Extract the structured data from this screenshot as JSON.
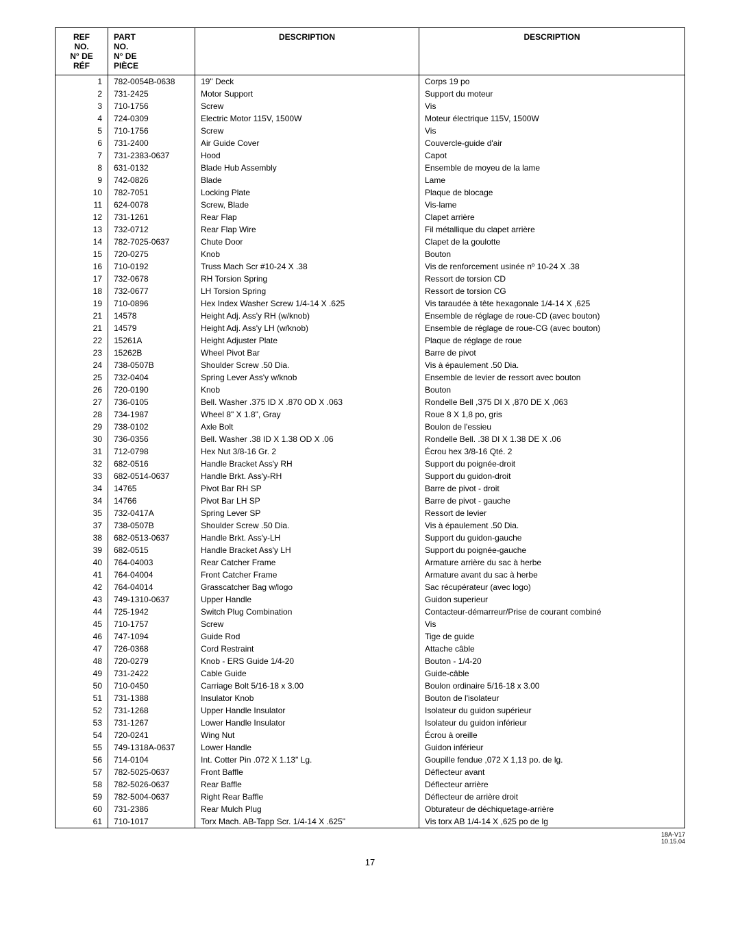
{
  "header": {
    "col1_line1": "REF",
    "col1_line2": "NO.",
    "col1_line3": "N° DE",
    "col1_line4": "RÉF",
    "col2_line1": "PART",
    "col2_line2": "NO.",
    "col2_line3": "N° DE",
    "col2_line4": "PIÈCE",
    "col3": "DESCRIPTION",
    "col4": "DESCRIPTION"
  },
  "rows": [
    {
      "ref": "1",
      "part": "782-0054B-0638",
      "desc_en": "19\" Deck",
      "desc_fr": "Corps 19 po"
    },
    {
      "ref": "2",
      "part": "731-2425",
      "desc_en": "Motor Support",
      "desc_fr": "Support du moteur"
    },
    {
      "ref": "3",
      "part": "710-1756",
      "desc_en": "Screw",
      "desc_fr": "Vis"
    },
    {
      "ref": "4",
      "part": "724-0309",
      "desc_en": "Electric Motor 115V, 1500W",
      "desc_fr": "Moteur électrique 115V, 1500W"
    },
    {
      "ref": "5",
      "part": "710-1756",
      "desc_en": "Screw",
      "desc_fr": "Vis"
    },
    {
      "ref": "6",
      "part": "731-2400",
      "desc_en": "Air Guide Cover",
      "desc_fr": "Couvercle-guide d'air"
    },
    {
      "ref": "7",
      "part": "731-2383-0637",
      "desc_en": "Hood",
      "desc_fr": "Capot"
    },
    {
      "ref": "8",
      "part": "631-0132",
      "desc_en": "Blade Hub Assembly",
      "desc_fr": "Ensemble de moyeu de la lame"
    },
    {
      "ref": "9",
      "part": "742-0826",
      "desc_en": "Blade",
      "desc_fr": "Lame"
    },
    {
      "ref": "10",
      "part": "782-7051",
      "desc_en": "Locking Plate",
      "desc_fr": "Plaque de blocage"
    },
    {
      "ref": "11",
      "part": "624-0078",
      "desc_en": "Screw, Blade",
      "desc_fr": "Vis-lame"
    },
    {
      "ref": "12",
      "part": "731-1261",
      "desc_en": "Rear Flap",
      "desc_fr": "Clapet arrière"
    },
    {
      "ref": "13",
      "part": "732-0712",
      "desc_en": "Rear Flap Wire",
      "desc_fr": "Fil métallique du clapet arrière"
    },
    {
      "ref": "14",
      "part": "782-7025-0637",
      "desc_en": "Chute Door",
      "desc_fr": "Clapet de la goulotte"
    },
    {
      "ref": "15",
      "part": "720-0275",
      "desc_en": "Knob",
      "desc_fr": "Bouton"
    },
    {
      "ref": "16",
      "part": "710-0192",
      "desc_en": "Truss Mach Scr #10-24 X .38",
      "desc_fr": "Vis de renforcement usinée nº 10-24 X .38"
    },
    {
      "ref": "17",
      "part": "732-0678",
      "desc_en": "RH Torsion Spring",
      "desc_fr": "Ressort de torsion CD"
    },
    {
      "ref": "18",
      "part": "732-0677",
      "desc_en": "LH Torsion Spring",
      "desc_fr": "Ressort de torsion CG"
    },
    {
      "ref": "19",
      "part": "710-0896",
      "desc_en": "Hex Index Washer Screw 1/4-14 X .625",
      "desc_fr": "Vis taraudée à tête hexagonale 1/4-14 X ,625"
    },
    {
      "ref": "21",
      "part": "14578",
      "desc_en": "Height Adj. Ass'y RH (w/knob)",
      "desc_fr": "Ensemble de réglage de roue-CD (avec bouton)"
    },
    {
      "ref": "21",
      "part": "14579",
      "desc_en": "Height Adj. Ass'y LH (w/knob)",
      "desc_fr": "Ensemble de réglage de roue-CG (avec bouton)"
    },
    {
      "ref": "22",
      "part": "15261A",
      "desc_en": "Height Adjuster Plate",
      "desc_fr": "Plaque de réglage de roue"
    },
    {
      "ref": "23",
      "part": "15262B",
      "desc_en": "Wheel Pivot Bar",
      "desc_fr": "Barre de pivot"
    },
    {
      "ref": "24",
      "part": "738-0507B",
      "desc_en": "Shoulder Screw .50 Dia.",
      "desc_fr": "Vis à épaulement .50 Dia."
    },
    {
      "ref": "25",
      "part": "732-0404",
      "desc_en": "Spring Lever Ass'y w/knob",
      "desc_fr": "Ensemble de levier de ressort avec bouton"
    },
    {
      "ref": "26",
      "part": "720-0190",
      "desc_en": "Knob",
      "desc_fr": "Bouton"
    },
    {
      "ref": "27",
      "part": "736-0105",
      "desc_en": "Bell. Washer .375 ID X .870 OD X .063",
      "desc_fr": "Rondelle Bell ,375 DI X ,870 DE X ,063"
    },
    {
      "ref": "28",
      "part": "734-1987",
      "desc_en": "Wheel 8\" X 1.8\", Gray",
      "desc_fr": "Roue 8 X 1,8 po, gris"
    },
    {
      "ref": "29",
      "part": "738-0102",
      "desc_en": "Axle Bolt",
      "desc_fr": "Boulon de l'essieu"
    },
    {
      "ref": "30",
      "part": "736-0356",
      "desc_en": "Bell. Washer .38 ID X 1.38 OD X .06",
      "desc_fr": "Rondelle Bell. .38 DI X 1.38 DE X .06"
    },
    {
      "ref": "31",
      "part": "712-0798",
      "desc_en": "Hex Nut 3/8-16 Gr. 2",
      "desc_fr": "Écrou hex 3/8-16 Qté. 2"
    },
    {
      "ref": "32",
      "part": "682-0516",
      "desc_en": "Handle Bracket Ass'y RH",
      "desc_fr": "Support du poignée-droit"
    },
    {
      "ref": "33",
      "part": "682-0514-0637",
      "desc_en": "Handle Brkt. Ass'y-RH",
      "desc_fr": "Support du guidon-droit"
    },
    {
      "ref": "34",
      "part": "14765",
      "desc_en": "Pivot Bar RH SP",
      "desc_fr": "Barre de pivot - droit"
    },
    {
      "ref": "34",
      "part": "14766",
      "desc_en": "Pivot Bar LH SP",
      "desc_fr": "Barre de pivot - gauche"
    },
    {
      "ref": "35",
      "part": "732-0417A",
      "desc_en": "Spring Lever SP",
      "desc_fr": "Ressort de levier"
    },
    {
      "ref": "37",
      "part": "738-0507B",
      "desc_en": "Shoulder Screw .50 Dia.",
      "desc_fr": "Vis à épaulement .50 Dia."
    },
    {
      "ref": "38",
      "part": "682-0513-0637",
      "desc_en": "Handle Brkt. Ass'y-LH",
      "desc_fr": "Support du guidon-gauche"
    },
    {
      "ref": "39",
      "part": "682-0515",
      "desc_en": "Handle Bracket Ass'y LH",
      "desc_fr": "Support du poignée-gauche"
    },
    {
      "ref": "40",
      "part": "764-04003",
      "desc_en": "Rear Catcher Frame",
      "desc_fr": "Armature arrière du sac à herbe"
    },
    {
      "ref": "41",
      "part": "764-04004",
      "desc_en": "Front Catcher Frame",
      "desc_fr": "Armature avant du sac à herbe"
    },
    {
      "ref": "42",
      "part": "764-04014",
      "desc_en": "Grasscatcher Bag w/logo",
      "desc_fr": "Sac récupérateur (avec logo)"
    },
    {
      "ref": "43",
      "part": "749-1310-0637",
      "desc_en": "Upper Handle",
      "desc_fr": "Guidon superieur"
    },
    {
      "ref": "44",
      "part": "725-1942",
      "desc_en": "Switch Plug Combination",
      "desc_fr": "Contacteur-démarreur/Prise de courant combiné"
    },
    {
      "ref": "45",
      "part": "710-1757",
      "desc_en": "Screw",
      "desc_fr": "Vis"
    },
    {
      "ref": "46",
      "part": "747-1094",
      "desc_en": "Guide Rod",
      "desc_fr": "Tige de guide"
    },
    {
      "ref": "47",
      "part": "726-0368",
      "desc_en": "Cord Restraint",
      "desc_fr": "Attache câble"
    },
    {
      "ref": "48",
      "part": "720-0279",
      "desc_en": "Knob - ERS Guide 1/4-20",
      "desc_fr": "Bouton - 1/4-20"
    },
    {
      "ref": "49",
      "part": "731-2422",
      "desc_en": "Cable Guide",
      "desc_fr": "Guide-câble"
    },
    {
      "ref": "50",
      "part": "710-0450",
      "desc_en": "Carriage Bolt 5/16-18 x 3.00",
      "desc_fr": "Boulon ordinaire 5/16-18 x 3.00"
    },
    {
      "ref": "51",
      "part": "731-1388",
      "desc_en": "Insulator Knob",
      "desc_fr": "Bouton de l'isolateur"
    },
    {
      "ref": "52",
      "part": "731-1268",
      "desc_en": "Upper Handle Insulator",
      "desc_fr": "Isolateur du guidon supérieur"
    },
    {
      "ref": "53",
      "part": "731-1267",
      "desc_en": "Lower Handle Insulator",
      "desc_fr": "Isolateur du guidon inférieur"
    },
    {
      "ref": "54",
      "part": "720-0241",
      "desc_en": "Wing Nut",
      "desc_fr": "Écrou à oreille"
    },
    {
      "ref": "55",
      "part": "749-1318A-0637",
      "desc_en": "Lower Handle",
      "desc_fr": "Guidon inférieur"
    },
    {
      "ref": "56",
      "part": "714-0104",
      "desc_en": "Int. Cotter Pin .072 X 1.13\" Lg.",
      "desc_fr": "Goupille fendue ,072 X 1,13 po. de lg."
    },
    {
      "ref": "57",
      "part": "782-5025-0637",
      "desc_en": "Front Baffle",
      "desc_fr": "Déflecteur avant"
    },
    {
      "ref": "58",
      "part": "782-5026-0637",
      "desc_en": "Rear Baffle",
      "desc_fr": "Déflecteur arrière"
    },
    {
      "ref": "59",
      "part": "782-5004-0637",
      "desc_en": "Right Rear Baffle",
      "desc_fr": "Déflecteur de arrière droit"
    },
    {
      "ref": "60",
      "part": "731-2386",
      "desc_en": "Rear Mulch Plug",
      "desc_fr": "Obturateur de déchiquetage-arrière"
    },
    {
      "ref": "61",
      "part": "710-1017",
      "desc_en": "Torx Mach. AB-Tapp Scr. 1/4-14 X .625\"",
      "desc_fr": "Vis torx AB  1/4-14 X ,625 po de lg"
    }
  ],
  "footer": {
    "code": "18A-V17",
    "date": "10.15.04",
    "page": "17"
  }
}
